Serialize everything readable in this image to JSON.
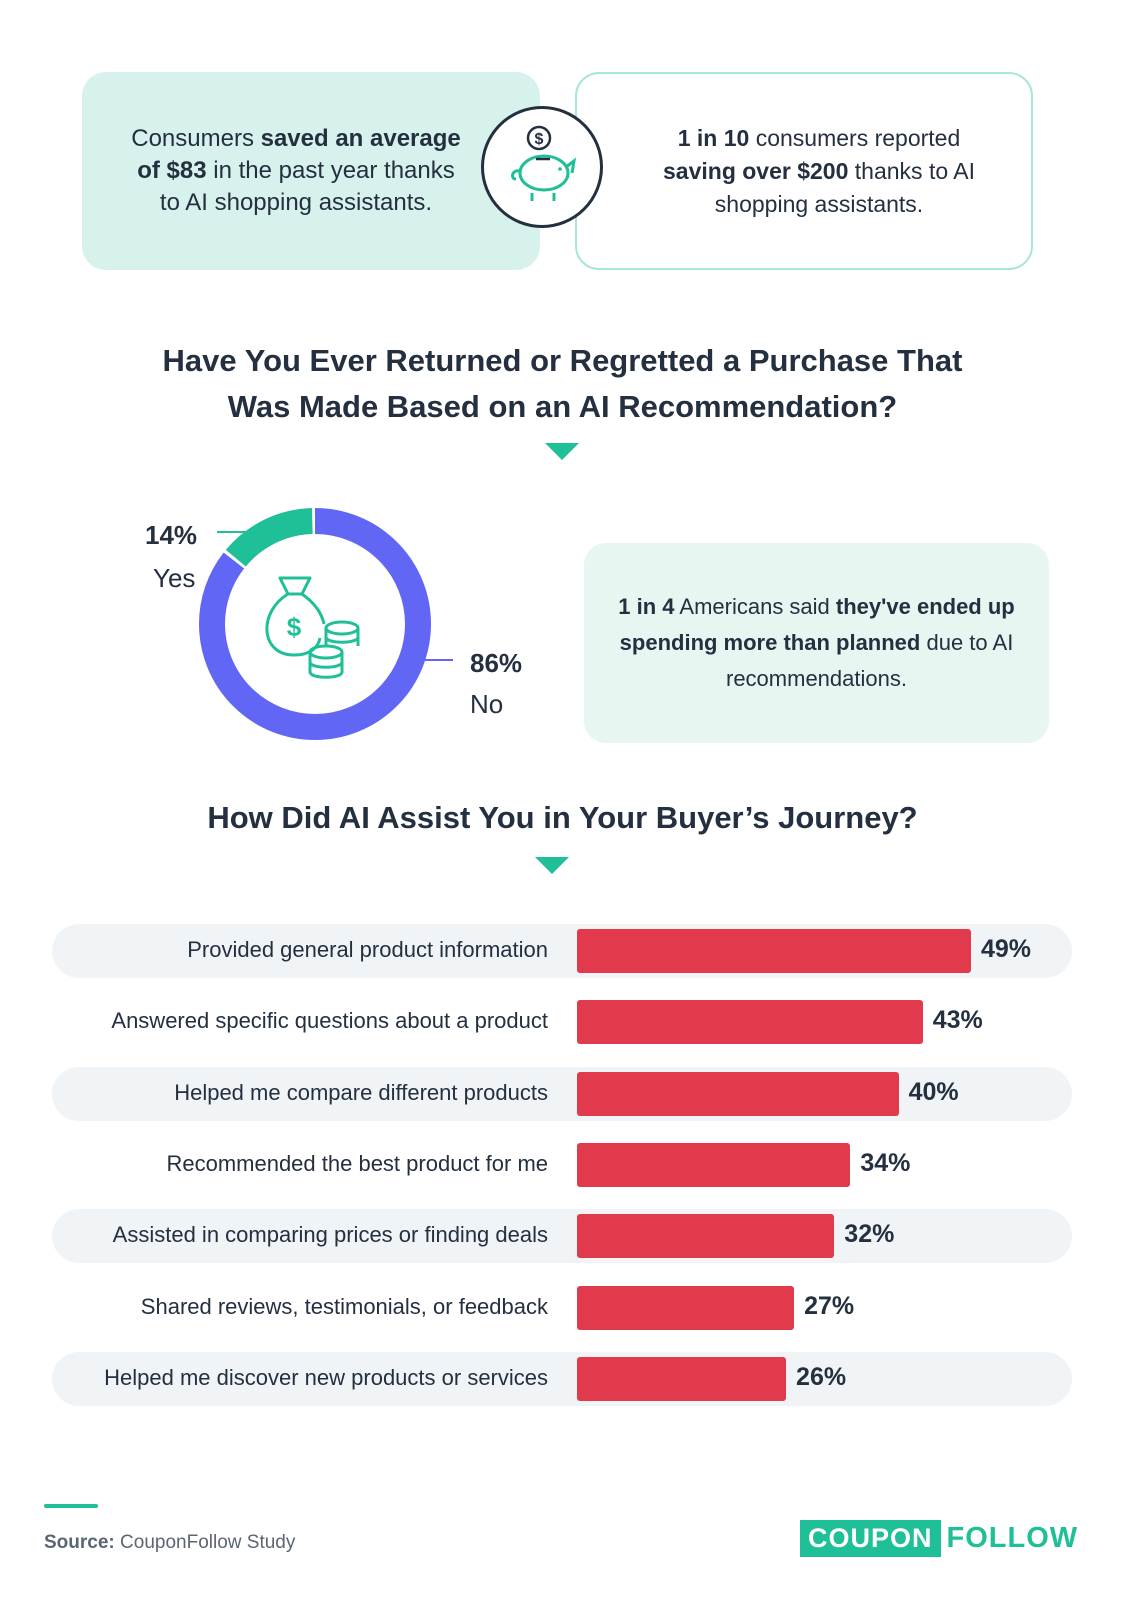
{
  "stats": {
    "left": {
      "t1": "Consumers ",
      "b1": "saved an average of $83",
      "t2": " in the past year thanks to AI shopping assistants."
    },
    "right": {
      "b1": "1 in 10",
      "t1": " consumers reported ",
      "b2": "saving over $200",
      "t2": " thanks to AI shopping assistants."
    },
    "icon": "piggy-bank-dollar-icon"
  },
  "section1": {
    "title_line1": "Have You Ever Returned or Regretted a Purchase That",
    "title_line2": "Was Made Based on an AI Recommendation?"
  },
  "note": {
    "b1": "1 in 4",
    "t1": " Americans said ",
    "b2": "they've ended up spending more than planned",
    "t2": " due to AI recommendations."
  },
  "section2": {
    "title": "How Did AI Assist You in Your Buyer’s Journey?"
  },
  "colors": {
    "accent": "#1fbf98",
    "donut_no": "#6166f5",
    "bar": "#e23a4d",
    "text": "#243040"
  },
  "chart_data": [
    {
      "type": "pie",
      "variant": "donut",
      "categories": [
        "Yes",
        "No"
      ],
      "values": [
        14,
        86
      ],
      "value_labels": [
        "14%",
        "86%"
      ],
      "colors": [
        "#1fbf98",
        "#6166f5"
      ],
      "center_icon": "money-bag-coins-icon"
    },
    {
      "type": "bar",
      "orientation": "horizontal",
      "categories": [
        "Provided general product information",
        "Answered specific questions about a product",
        "Helped me compare different products",
        "Recommended the best product for me",
        "Assisted in comparing prices or finding deals",
        "Shared reviews, testimonials, or feedback",
        "Helped me discover new products or services"
      ],
      "values": [
        49,
        43,
        40,
        34,
        32,
        27,
        26
      ],
      "value_labels": [
        "49%",
        "43%",
        "40%",
        "34%",
        "32%",
        "27%",
        "26%"
      ],
      "unit": "%",
      "color": "#e23a4d"
    }
  ],
  "footer": {
    "source_bold": "Source:",
    "source_text": " CouponFollow Study",
    "logo_part1": "COUPON",
    "logo_part2": "FOLLOW"
  }
}
